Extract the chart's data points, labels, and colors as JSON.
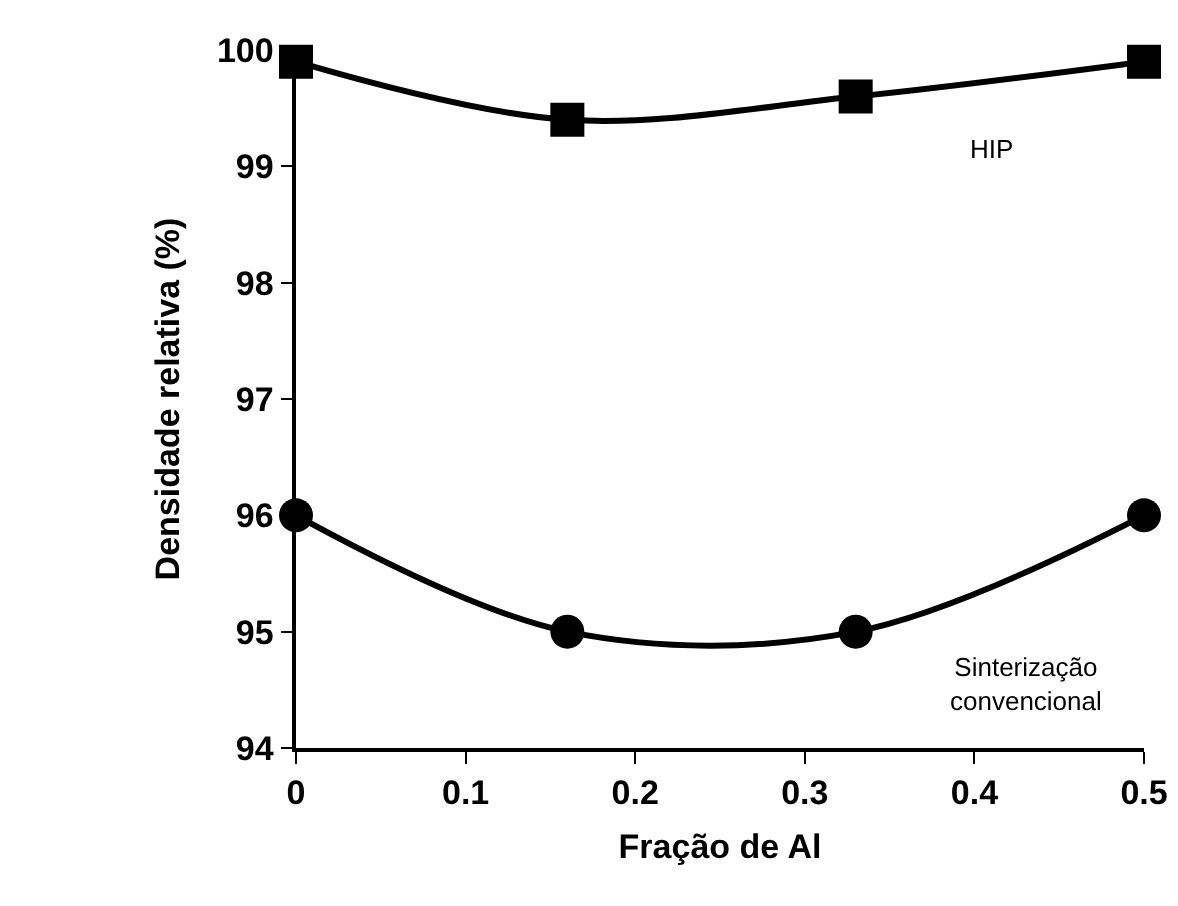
{
  "chart_data": {
    "type": "line",
    "xlabel": "Fração de Al",
    "ylabel": "Densidade relativa (%)",
    "x": [
      0,
      0.16,
      0.33,
      0.5
    ],
    "series": [
      {
        "name": "HIP",
        "color": "#000000",
        "marker": "square",
        "values": [
          99.9,
          99.4,
          99.6,
          99.9
        ]
      },
      {
        "name": "Sinterização\nconvencional",
        "color": "#000000",
        "marker": "circle",
        "values": [
          96,
          95,
          95,
          96
        ]
      }
    ],
    "xlim": [
      0,
      0.5
    ],
    "xticks": [
      0,
      0.1,
      0.2,
      0.3,
      0.4,
      0.5
    ],
    "ylim": [
      94,
      100
    ],
    "yticks": [
      94,
      95,
      96,
      97,
      98,
      99,
      100
    ],
    "grid": false,
    "legend": false,
    "line_style": "solid"
  }
}
